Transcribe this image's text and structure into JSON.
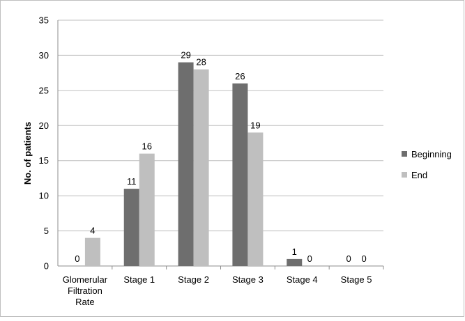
{
  "chart_data": {
    "type": "bar",
    "categories": [
      "Glomerular Filtration Rate",
      "Stage 1",
      "Stage 2",
      "Stage 3",
      "Stage 4",
      "Stage 5"
    ],
    "series": [
      {
        "name": "Beginning",
        "values": [
          0,
          11,
          29,
          26,
          1,
          0
        ],
        "color": "#6e6e6e"
      },
      {
        "name": "End",
        "values": [
          4,
          16,
          28,
          19,
          0,
          0
        ],
        "color": "#bfbfbf"
      }
    ],
    "title": "",
    "xlabel": "",
    "ylabel": "No. of patients",
    "ylim": [
      0,
      35
    ],
    "yticks": [
      0,
      5,
      10,
      15,
      20,
      25,
      30,
      35
    ],
    "grid": true,
    "legend": "right"
  }
}
